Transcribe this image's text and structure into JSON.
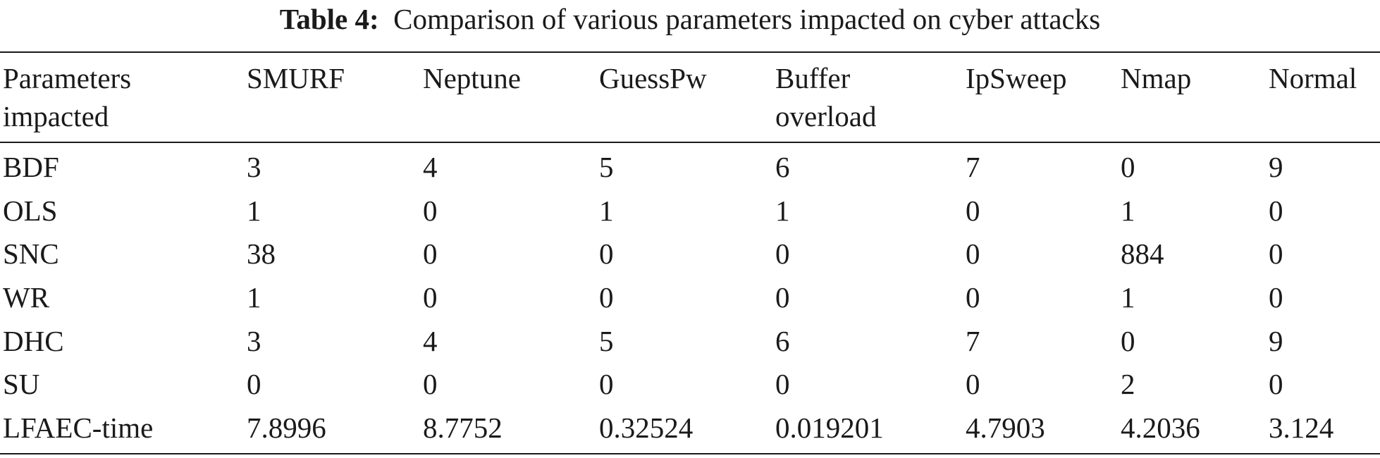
{
  "caption": {
    "label": "Table 4:",
    "text": "Comparison of various parameters impacted on cyber attacks"
  },
  "table": {
    "headers": [
      [
        "Parameters",
        "impacted"
      ],
      [
        "SMURF",
        ""
      ],
      [
        "Neptune",
        ""
      ],
      [
        "GuessPw",
        ""
      ],
      [
        "Buffer",
        "overload"
      ],
      [
        "IpSweep",
        ""
      ],
      [
        "Nmap",
        ""
      ],
      [
        "Normal",
        ""
      ]
    ],
    "rows": [
      [
        "BDF",
        "3",
        "4",
        "5",
        "6",
        "7",
        "0",
        "9"
      ],
      [
        "OLS",
        "1",
        "0",
        "1",
        "1",
        "0",
        "1",
        "0"
      ],
      [
        "SNC",
        "38",
        "0",
        "0",
        "0",
        "0",
        "884",
        "0"
      ],
      [
        "WR",
        "1",
        "0",
        "0",
        "0",
        "0",
        "1",
        "0"
      ],
      [
        "DHC",
        "3",
        "4",
        "5",
        "6",
        "7",
        "0",
        "9"
      ],
      [
        "SU",
        "0",
        "0",
        "0",
        "0",
        "0",
        "2",
        "0"
      ],
      [
        "LFAEC-time",
        "7.8996",
        "8.7752",
        "0.32524",
        "0.019201",
        "4.7903",
        "4.2036",
        "3.124"
      ]
    ]
  }
}
